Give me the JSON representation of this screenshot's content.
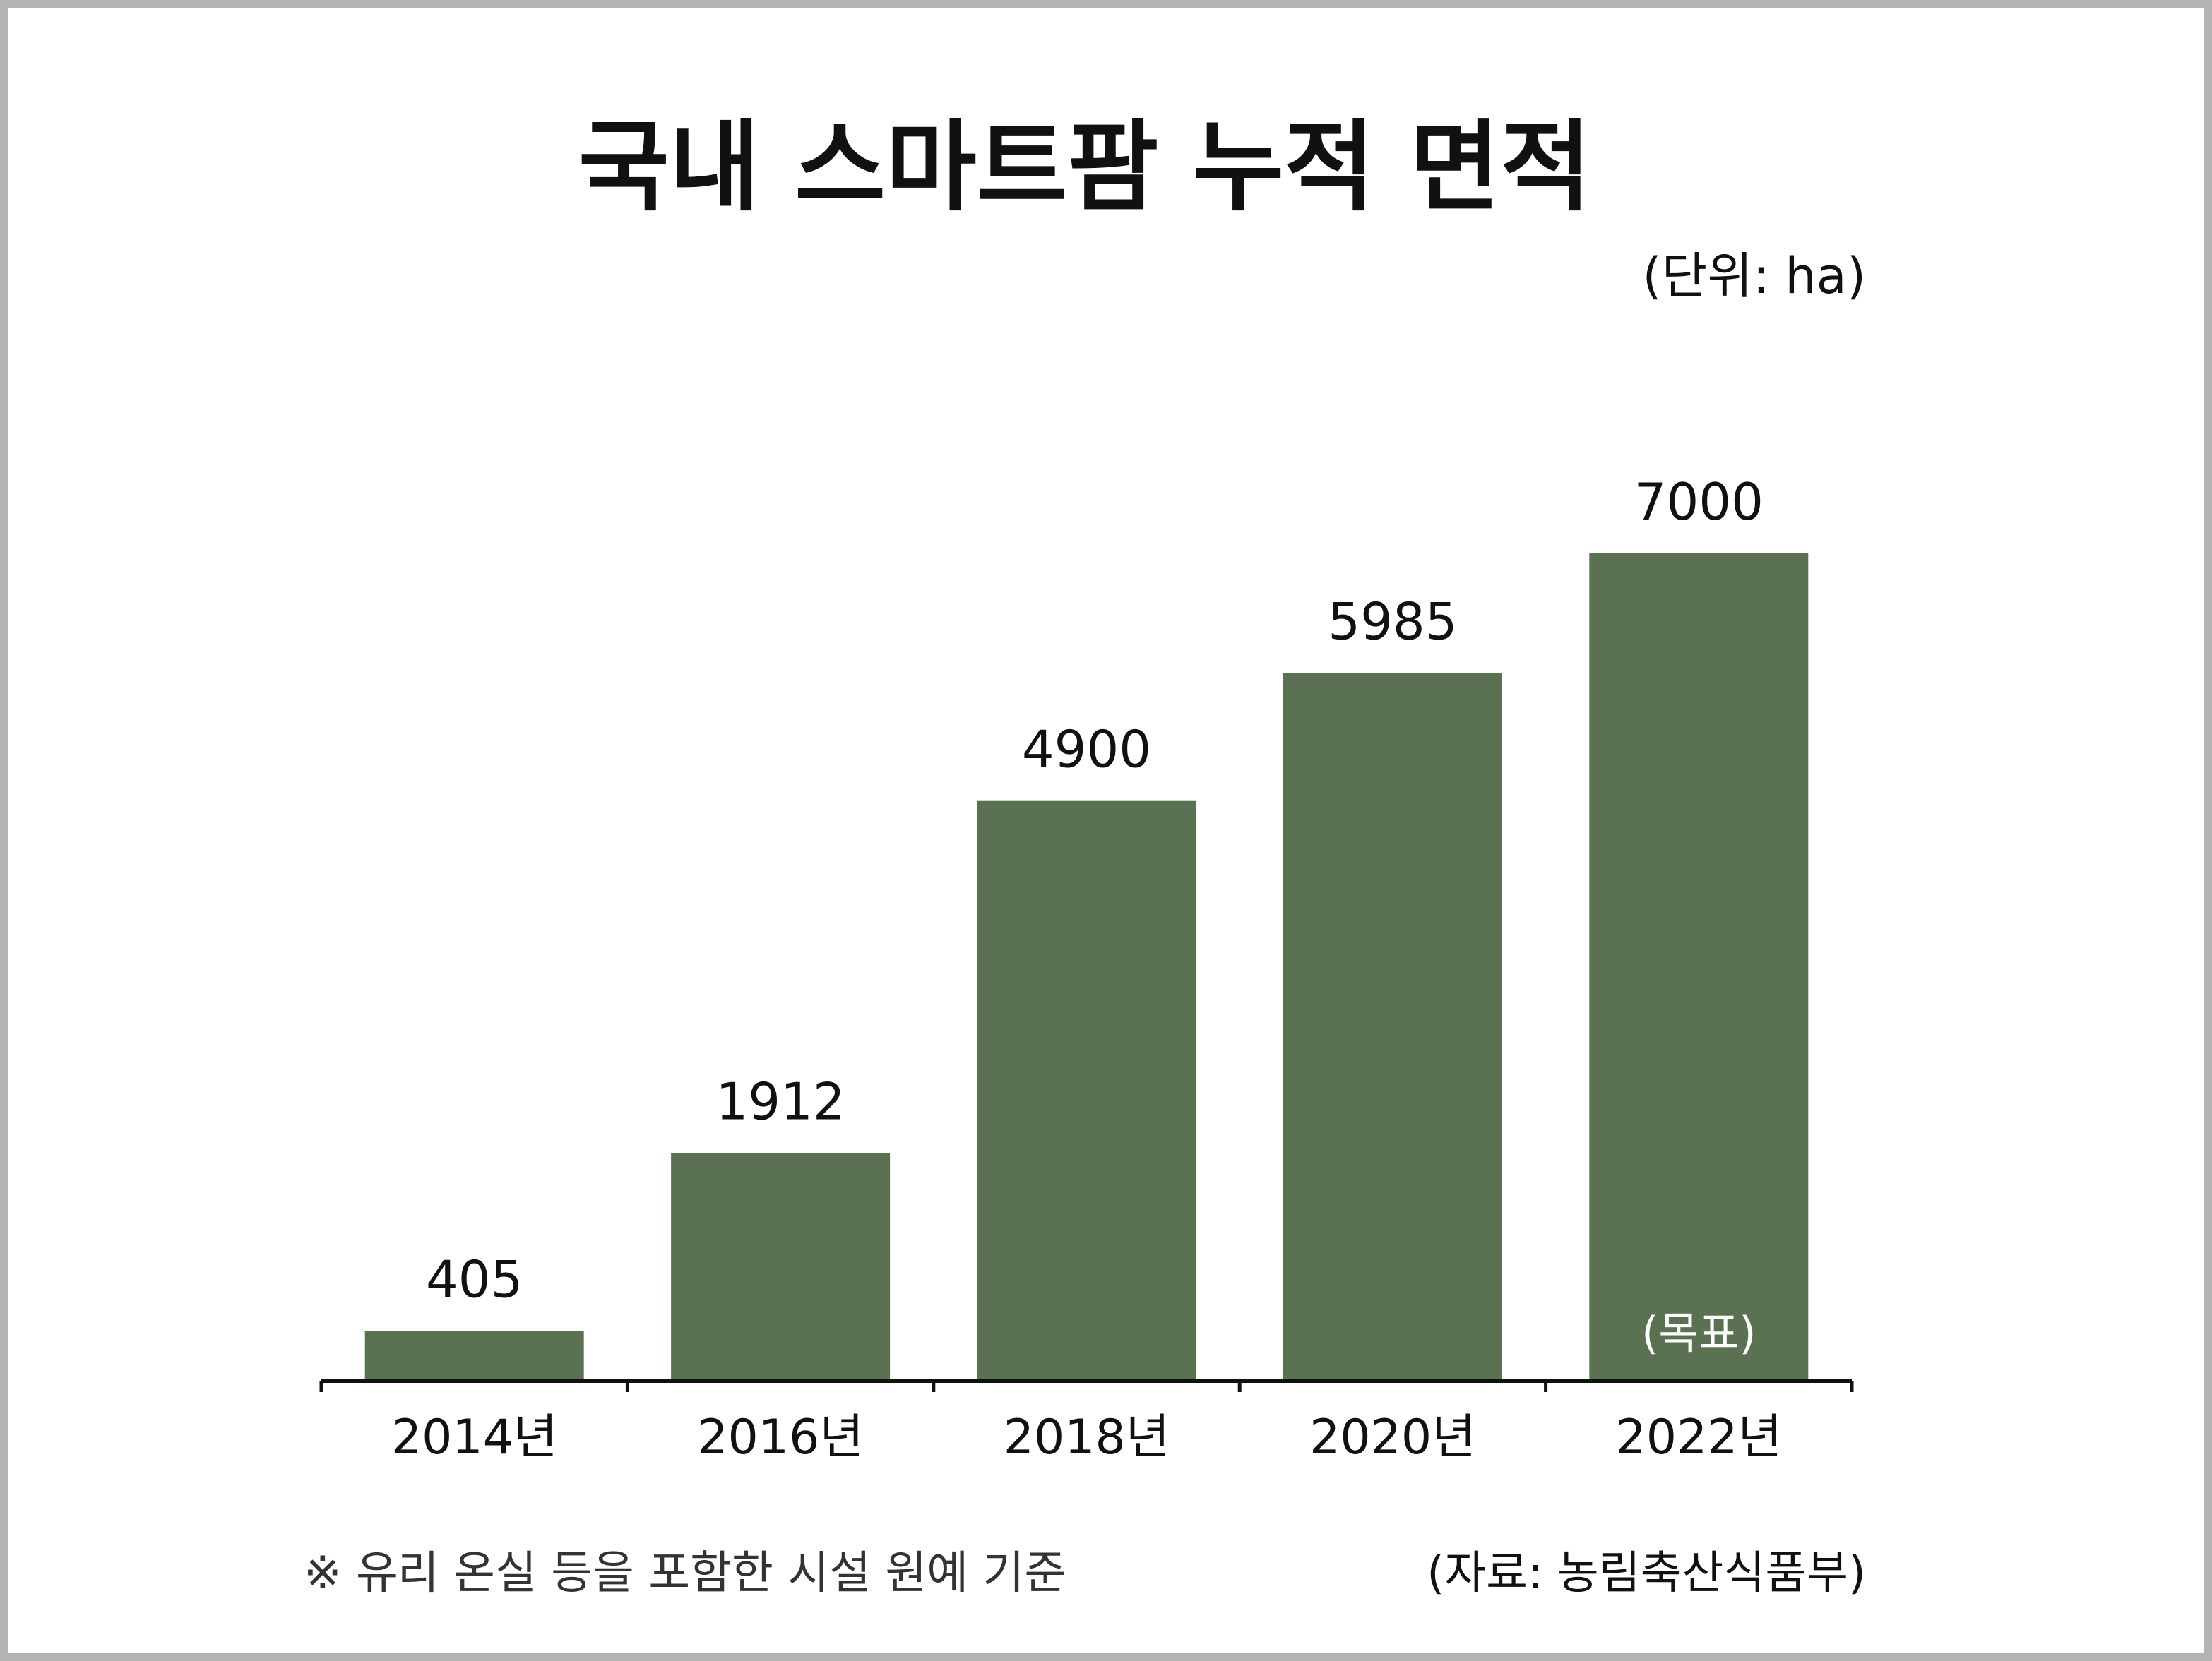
{
  "chart_data": {
    "type": "bar",
    "title": "국내 스마트팜 누적 면적",
    "unit_label": "(단위: ha)",
    "categories": [
      "2014년",
      "2016년",
      "2018년",
      "2020년",
      "2022년"
    ],
    "values": [
      405,
      1912,
      4900,
      5985,
      7000
    ],
    "value_labels": [
      "405",
      "1912",
      "4900",
      "5985",
      "7000"
    ],
    "bar_annotations": [
      "",
      "",
      "",
      "",
      "(목표)"
    ],
    "ylim": [
      0,
      7000
    ],
    "grid": false,
    "legend": "none",
    "bar_color": "#5a7252",
    "annotation_color": "#ffffff"
  },
  "footer": {
    "note": "※ 유리 온실 등을 포함한 시설 원예 기준",
    "source": "(자료: 농림축산식품부)"
  },
  "colors": {
    "frame_border": "#b3b3b3",
    "background": "#ffffff",
    "text": "#111111"
  }
}
